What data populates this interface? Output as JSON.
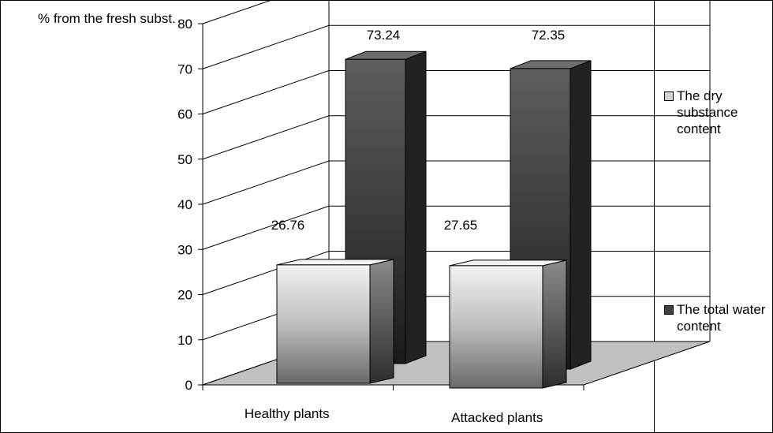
{
  "chart_data": {
    "type": "bar",
    "categories": [
      "Healthy plants",
      "Attacked plants"
    ],
    "series": [
      {
        "name": "The dry substance content",
        "values": [
          26.76,
          27.65
        ],
        "color": "#d4d4d4"
      },
      {
        "name": "The total water content",
        "values": [
          73.24,
          72.35
        ],
        "color": "#404040"
      }
    ],
    "ylabel": "% from the fresh subst.",
    "ylim": [
      0,
      80
    ],
    "yticks": [
      0,
      10,
      20,
      30,
      40,
      50,
      60,
      70,
      80
    ],
    "grid": true,
    "legend": "right",
    "style": "3d-column"
  }
}
